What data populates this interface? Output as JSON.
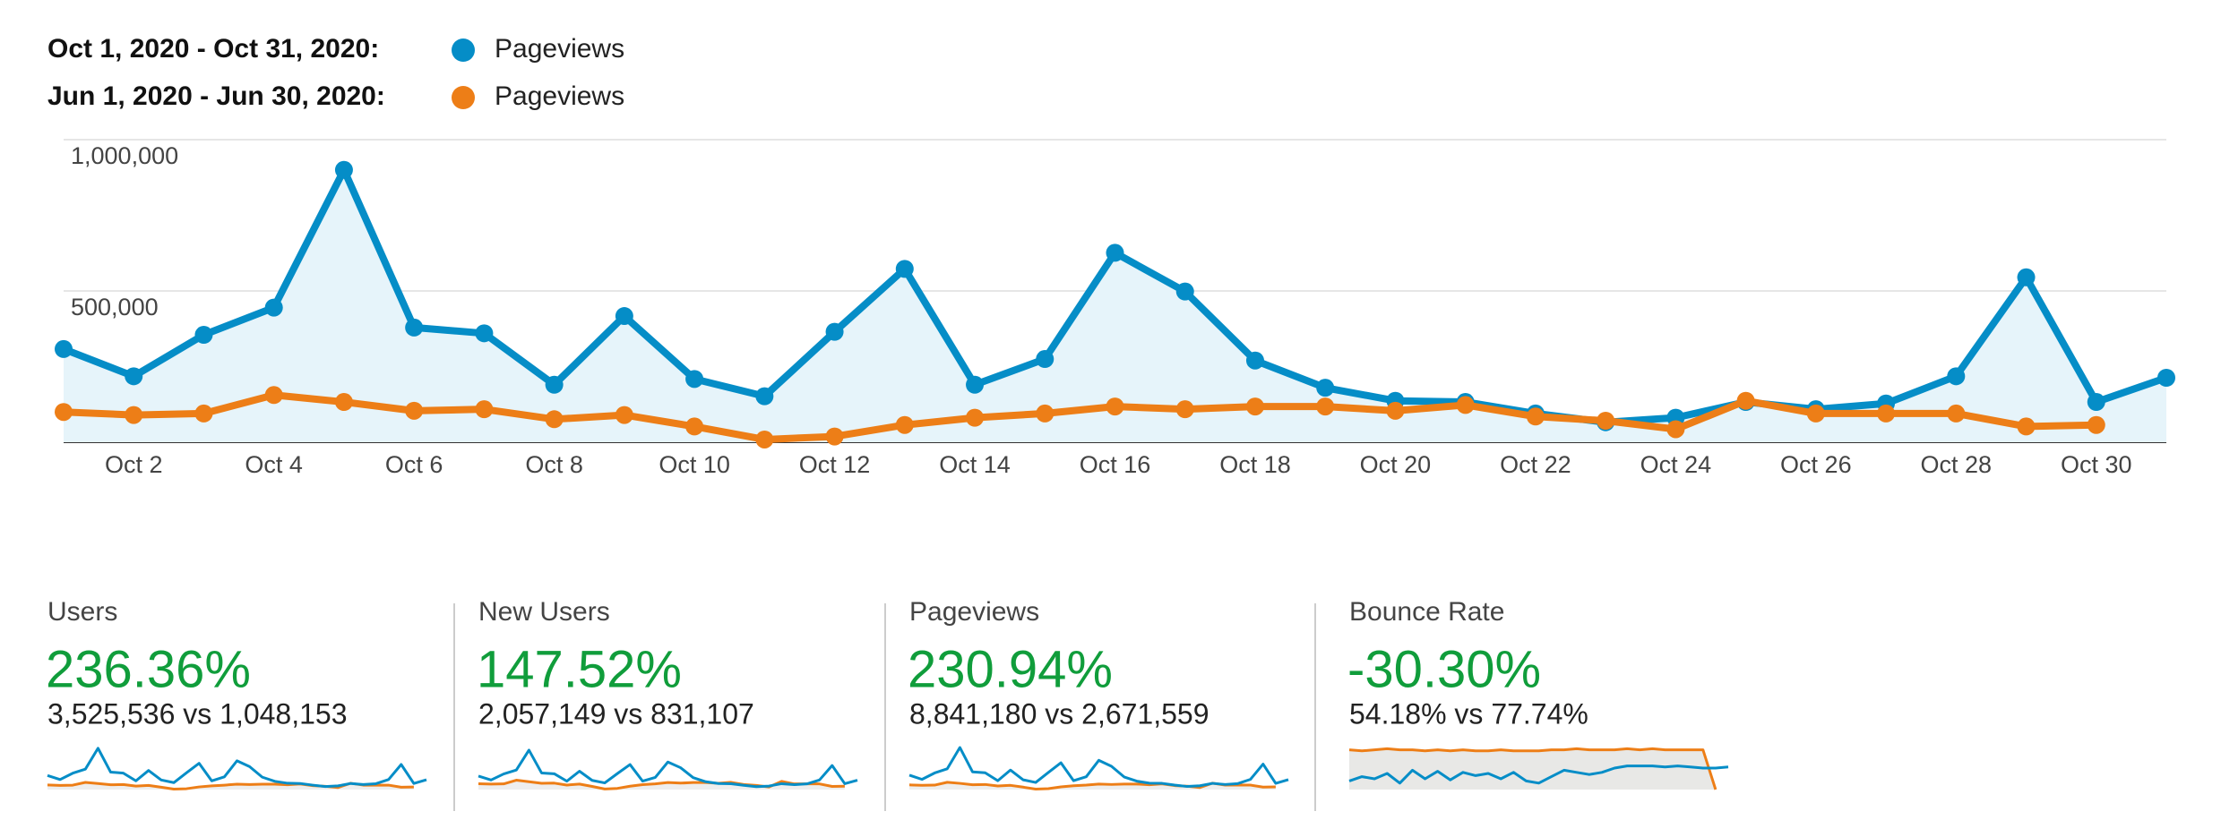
{
  "chart_data": {
    "type": "line",
    "categories": [
      null,
      "Oct 2",
      null,
      "Oct 4",
      null,
      "Oct 6",
      null,
      "Oct 8",
      null,
      "Oct 10",
      null,
      "Oct 12",
      null,
      "Oct 14",
      null,
      "Oct 16",
      null,
      "Oct 18",
      null,
      "Oct 20",
      null,
      "Oct 22",
      null,
      "Oct 24",
      null,
      "Oct 26",
      null,
      "Oct 28",
      null,
      "Oct 30",
      null
    ],
    "series": [
      {
        "name": "Pageviews",
        "period": "Oct 1, 2020 - Oct 31, 2020:",
        "color": "#058dc7",
        "area": true,
        "area_color": "#e6f4fa",
        "values": [
          308000,
          218000,
          355000,
          445000,
          900000,
          379000,
          360000,
          190000,
          417000,
          209000,
          152000,
          365000,
          573000,
          190000,
          275000,
          626000,
          498000,
          270000,
          180000,
          137000,
          133000,
          95000,
          66000,
          81000,
          133000,
          109000,
          128000,
          218000,
          545000,
          133000,
          213000
        ]
      },
      {
        "name": "Pageviews",
        "period": "Jun 1, 2020 - Jun 30, 2020:",
        "color": "#ed7e17",
        "area": false,
        "values": [
          100000,
          90000,
          95000,
          156000,
          133000,
          104000,
          109000,
          76000,
          90000,
          52000,
          9000,
          19000,
          57000,
          81000,
          95000,
          118000,
          109000,
          118000,
          118000,
          104000,
          123000,
          85000,
          71000,
          43000,
          137000,
          95000,
          95000,
          95000,
          52000,
          57000,
          null
        ]
      }
    ],
    "ylim": [
      0,
      1000000
    ],
    "yticks": [
      {
        "value": 500000,
        "label": "500,000"
      },
      {
        "value": 1000000,
        "label": "1,000,000"
      }
    ],
    "grid": true
  },
  "scorecards": [
    {
      "title": "Users",
      "change": "236.36%",
      "comparison": "3,525,536 vs 1,048,153",
      "sparkline": {
        "ylim": [
          0,
          360000
        ],
        "fill": "#eeeeee",
        "series": [
          {
            "color": "#ed7e17",
            "values": [
              38000,
              35000,
              37000,
              60000,
              51000,
              40000,
              42000,
              29000,
              35000,
              20000,
              4000,
              7000,
              22000,
              31000,
              37000,
              45000,
              42000,
              45000,
              45000,
              40000,
              47000,
              33000,
              27000,
              17000,
              53000,
              37000,
              37000,
              37000,
              20000,
              22000
            ]
          },
          {
            "color": "#058dc7",
            "values": [
              118000,
              84000,
              137000,
              171000,
              346000,
              146000,
              138000,
              73000,
              160000,
              80000,
              58000,
              140000,
              220000,
              73000,
              106000,
              241000,
              192000,
              104000,
              69000,
              53000,
              51000,
              37000,
              25000,
              31000,
              51000,
              42000,
              49000,
              84000,
              210000,
              51000,
              82000
            ]
          }
        ]
      }
    },
    {
      "title": "New Users",
      "change": "147.52%",
      "comparison": "2,057,149 vs 831,107",
      "sparkline": {
        "ylim": [
          0,
          220000
        ],
        "fill": "#eeeeee",
        "series": [
          {
            "color": "#ed7e17",
            "values": [
              30000,
              28000,
              29000,
              48000,
              40000,
              32000,
              33000,
              23000,
              28000,
              16000,
              3000,
              6000,
              17000,
              25000,
              29000,
              36000,
              33000,
              36000,
              36000,
              32000,
              37000,
              26000,
              21000,
              13000,
              42000,
              29000,
              29000,
              29000,
              16000,
              17000
            ]
          },
          {
            "color": "#058dc7",
            "values": [
              69000,
              49000,
              80000,
              100000,
              202000,
              85000,
              81000,
              43000,
              94000,
              47000,
              34000,
              82000,
              128000,
              43000,
              62000,
              141000,
              112000,
              61000,
              40000,
              31000,
              30000,
              22000,
              15000,
              18000,
              30000,
              25000,
              29000,
              49000,
              123000,
              30000,
              48000
            ]
          }
        ]
      }
    },
    {
      "title": "Pageviews",
      "change": "230.94%",
      "comparison": "8,841,180 vs 2,671,559",
      "sparkline": {
        "ylim": [
          0,
          920000
        ],
        "fill": "#eeeeee",
        "series": [
          {
            "color": "#ed7e17",
            "values": [
              100000,
              90000,
              95000,
              156000,
              133000,
              104000,
              109000,
              76000,
              90000,
              52000,
              9000,
              19000,
              57000,
              81000,
              95000,
              118000,
              109000,
              118000,
              118000,
              104000,
              123000,
              85000,
              71000,
              43000,
              137000,
              95000,
              95000,
              95000,
              52000,
              57000
            ]
          },
          {
            "color": "#058dc7",
            "values": [
              308000,
              218000,
              355000,
              445000,
              900000,
              379000,
              360000,
              190000,
              417000,
              209000,
              152000,
              365000,
              573000,
              190000,
              275000,
              626000,
              498000,
              270000,
              180000,
              137000,
              133000,
              95000,
              66000,
              81000,
              133000,
              109000,
              128000,
              218000,
              545000,
              133000,
              213000
            ]
          }
        ]
      }
    },
    {
      "title": "Bounce Rate",
      "change": "-30.30%",
      "comparison": "54.18% vs 77.74%",
      "sparkline": {
        "ylim": [
          40,
          80
        ],
        "fill": "#e8e8e6",
        "series": [
          {
            "color": "#ed7e17",
            "values": [
              77,
              76,
              77,
              78,
              77,
              77,
              76,
              77,
              76,
              77,
              76,
              76,
              77,
              76,
              76,
              76,
              77,
              77,
              78,
              77,
              77,
              77,
              78,
              77,
              78,
              77,
              77,
              77,
              77,
              40
            ]
          },
          {
            "color": "#058dc7",
            "values": [
              48,
              52,
              50,
              55,
              46,
              58,
              50,
              57,
              49,
              56,
              53,
              55,
              50,
              56,
              48,
              46,
              52,
              58,
              56,
              54,
              56,
              60,
              62,
              62,
              62,
              61,
              62,
              61,
              60,
              60,
              61
            ]
          }
        ]
      }
    }
  ]
}
